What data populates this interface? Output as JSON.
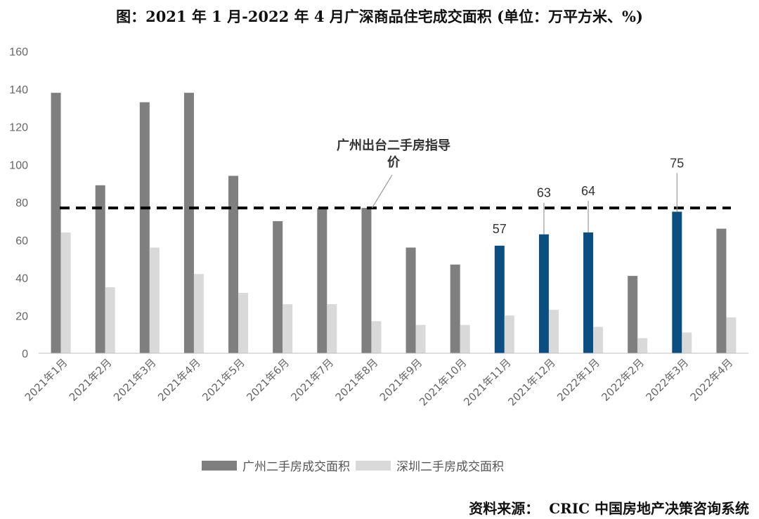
{
  "title": "图：2021 年 1 月-2022 年 4 月广深商品住宅成交面积 (单位：万平方米、%)",
  "source": "资料来源：  CRIC 中国房地产决策咨询系统",
  "chart_data": {
    "type": "bar",
    "categories": [
      "2021年1月",
      "2021年2月",
      "2021年3月",
      "2021年4月",
      "2021年5月",
      "2021年6月",
      "2021年7月",
      "2021年8月",
      "2021年9月",
      "2021年10月",
      "2021年11月",
      "2021年12月",
      "2022年1月",
      "2022年2月",
      "2022年3月",
      "2022年4月"
    ],
    "series": [
      {
        "name": "广州二手房成交面积",
        "color": "#7f7f7f",
        "values": [
          138,
          89,
          133,
          138,
          94,
          70,
          77,
          77,
          56,
          47,
          57,
          63,
          64,
          41,
          75,
          66
        ]
      },
      {
        "name": "深圳二手房成交面积",
        "color": "#d9d9d9",
        "values": [
          64,
          35,
          56,
          42,
          32,
          26,
          26,
          17,
          15,
          15,
          20,
          23,
          14,
          8,
          11,
          19
        ]
      }
    ],
    "highlight_color": "#0b4f82",
    "highlight_indices": [
      10,
      11,
      12,
      14
    ],
    "data_labels": [
      {
        "index": 10,
        "text": "57"
      },
      {
        "index": 11,
        "text": "63"
      },
      {
        "index": 12,
        "text": "64"
      },
      {
        "index": 14,
        "text": "75"
      }
    ],
    "reference_line": {
      "value": 77,
      "style": "dashed",
      "color": "#000000"
    },
    "annotation": {
      "lines": [
        "广州出台二手房指导",
        "价"
      ],
      "target_index": 7
    },
    "ylim": [
      0,
      160
    ],
    "yticks": [
      0,
      20,
      40,
      60,
      80,
      100,
      120,
      140,
      160
    ],
    "legend_position": "bottom"
  }
}
